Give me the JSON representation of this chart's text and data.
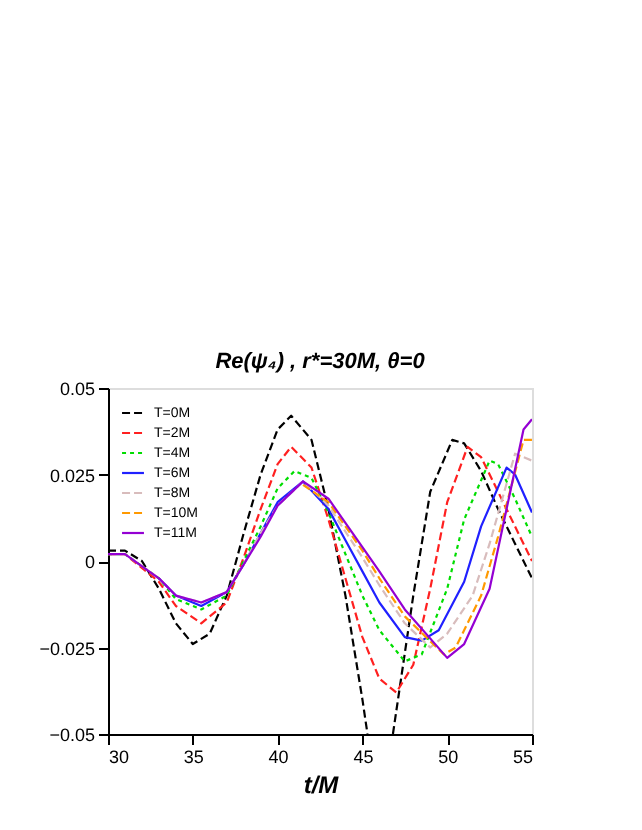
{
  "chart_data": {
    "type": "line",
    "title": "Re(ψ₄) , r*=30M, θ=0",
    "xlabel": "t/M",
    "xlim": [
      30,
      55
    ],
    "xticks": [
      30,
      35,
      40,
      45,
      50,
      55
    ],
    "ylim": [
      -0.05,
      0.05
    ],
    "yticks": [
      -0.05,
      -0.025,
      0,
      0.025,
      0.05
    ],
    "grid": false,
    "legend": "top left",
    "marker": "none",
    "series": [
      {
        "name": "T=0M",
        "color": "#000000",
        "line_style": "dashed",
        "x": [
          30,
          31,
          32,
          33,
          34,
          35,
          36,
          37,
          38,
          39,
          40,
          40.8,
          42,
          43,
          44,
          45,
          45.3,
          46,
          46.8,
          48,
          49,
          50.3,
          51,
          52,
          53,
          54,
          55
        ],
        "values": [
          0.003,
          0.003,
          0.0,
          -0.008,
          -0.018,
          -0.024,
          -0.021,
          -0.01,
          0.008,
          0.025,
          0.038,
          0.042,
          0.035,
          0.015,
          -0.01,
          -0.04,
          -0.05,
          null,
          -0.05,
          -0.01,
          0.02,
          0.035,
          0.034,
          0.026,
          0.015,
          0.005,
          -0.005
        ]
      },
      {
        "name": "T=2M",
        "color": "#ff2020",
        "line_style": "dashed",
        "x": [
          30,
          31,
          33,
          34,
          35.5,
          37,
          38,
          39,
          40,
          40.8,
          42,
          43,
          44,
          45,
          46,
          47,
          48,
          49,
          50,
          51.2,
          52,
          53,
          54,
          55
        ],
        "values": [
          0.002,
          0.002,
          -0.006,
          -0.013,
          -0.018,
          -0.012,
          0.001,
          0.015,
          0.028,
          0.033,
          0.027,
          0.012,
          -0.005,
          -0.022,
          -0.034,
          -0.038,
          -0.03,
          -0.008,
          0.017,
          0.033,
          0.03,
          0.02,
          0.01,
          0.0
        ]
      },
      {
        "name": "T=4M",
        "color": "#00dd00",
        "line_style": "dotted",
        "x": [
          30,
          31,
          33,
          34,
          35.5,
          37,
          38,
          39,
          40,
          41,
          42,
          43,
          44,
          45,
          46,
          47.5,
          48.5,
          50,
          51,
          52.5,
          53,
          54,
          55
        ],
        "values": [
          0.002,
          0.002,
          -0.005,
          -0.011,
          -0.014,
          -0.01,
          0.0,
          0.01,
          0.021,
          0.026,
          0.024,
          0.014,
          0.002,
          -0.01,
          -0.02,
          -0.029,
          -0.027,
          -0.008,
          0.012,
          0.029,
          0.028,
          0.018,
          0.007
        ]
      },
      {
        "name": "T=6M",
        "color": "#2020ff",
        "line_style": "solid",
        "x": [
          33,
          34,
          35.5,
          37,
          38,
          39,
          40,
          41.5,
          43,
          44,
          45,
          46,
          47.5,
          48.5,
          49.5,
          51,
          52,
          53.5,
          54,
          55
        ],
        "values": [
          -0.005,
          -0.01,
          -0.013,
          -0.009,
          -0.001,
          0.008,
          0.017,
          0.023,
          0.015,
          0.006,
          -0.003,
          -0.012,
          -0.022,
          -0.023,
          -0.02,
          -0.006,
          0.01,
          0.027,
          0.025,
          0.014
        ]
      },
      {
        "name": "T=8M",
        "color": "#d8bcbc",
        "line_style": "dashed",
        "x": [
          30,
          31,
          33,
          34,
          35.5,
          37,
          38,
          39,
          40,
          41.5,
          43,
          45,
          46,
          47.5,
          49,
          50,
          51.5,
          52.5,
          54,
          55
        ],
        "values": [
          0.002,
          0.002,
          -0.005,
          -0.01,
          -0.012,
          -0.009,
          -0.001,
          0.008,
          0.016,
          0.023,
          0.016,
          0.001,
          -0.007,
          -0.018,
          -0.025,
          -0.021,
          -0.01,
          0.005,
          0.031,
          0.029
        ]
      },
      {
        "name": "T=10M",
        "color": "#ff9900",
        "line_style": "dashed",
        "x": [
          41.5,
          43,
          45,
          46,
          47.5,
          49.8,
          50.5,
          52,
          53,
          54.5,
          55
        ],
        "values": [
          0.022,
          0.017,
          0.003,
          -0.005,
          -0.016,
          -0.027,
          -0.025,
          -0.01,
          0.007,
          0.035,
          0.035
        ]
      },
      {
        "name": "T=11M",
        "color": "#9400d3",
        "line_style": "solid",
        "x": [
          30,
          31,
          33,
          34,
          35.5,
          37,
          38,
          39,
          40,
          41.5,
          43,
          45,
          46,
          47.5,
          50,
          51,
          52.5,
          53.5,
          54.5,
          55
        ],
        "values": [
          0.002,
          0.002,
          -0.005,
          -0.01,
          -0.012,
          -0.009,
          -0.001,
          0.007,
          0.016,
          0.023,
          0.018,
          0.004,
          -0.003,
          -0.014,
          -0.028,
          -0.024,
          -0.008,
          0.015,
          0.038,
          0.041
        ]
      }
    ]
  }
}
